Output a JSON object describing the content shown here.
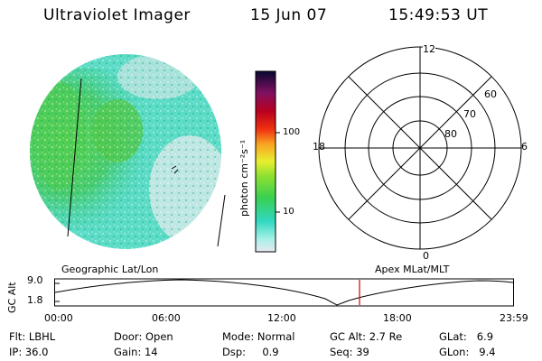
{
  "header": {
    "instrument": "Ultraviolet Imager",
    "date": "15 Jun 07",
    "time": "15:49:53 UT"
  },
  "colorbar": {
    "label": "photon cm⁻²s⁻¹",
    "ticks": [
      "100",
      "10"
    ]
  },
  "polar": {
    "mlt_labels": {
      "top": "12",
      "left": "18",
      "right": "6",
      "bottom": "0"
    },
    "lat_labels": [
      "60",
      "70",
      "80"
    ]
  },
  "orbit": {
    "ylabel": "GC Alt",
    "ticks_y": [
      "9.0",
      "1.8"
    ],
    "left_caption": "Geographic Lat/Lon",
    "right_caption": "Apex MLat/MLT",
    "time_ticks": [
      "00:00",
      "06:00",
      "12:00",
      "18:00",
      "23:59"
    ],
    "marker_color": "#d40000"
  },
  "info": {
    "row1": [
      {
        "label": "Flt:",
        "value": "LBHL"
      },
      {
        "label": "Door:",
        "value": "Open"
      },
      {
        "label": "Mode:",
        "value": "Normal"
      },
      {
        "label": "GC Alt:",
        "value": "2.7 Re"
      },
      {
        "label": "GLat:",
        "value": "6.9"
      }
    ],
    "row2": [
      {
        "label": "IP:",
        "value": "36.0"
      },
      {
        "label": "Gain:",
        "value": "14"
      },
      {
        "label": "Dsp:",
        "value": "0.9"
      },
      {
        "label": "Seq:",
        "value": "39"
      },
      {
        "label": "GLon:",
        "value": "9.4"
      }
    ]
  }
}
